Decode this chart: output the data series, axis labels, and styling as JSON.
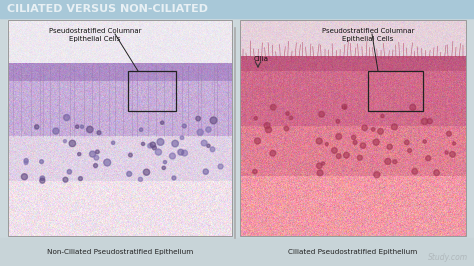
{
  "title": "CILIATED VERSUS NON-CILIATED",
  "title_color": "#e8f0f4",
  "title_bg_top": "#a8c8d8",
  "title_bg_bot": "#c0d8e4",
  "outer_bg": "#ccd8dc",
  "bottom_bar_color": "#c8d4d8",
  "left_label": "Non-Ciliated Pseudostratified Epithelium",
  "right_label": "Ciliated Pseudostratified Epithelium",
  "left_ann_text": "Pseudostratified Columnar\nEpithelial Cells",
  "right_ann_text": "Pseudostratified Columnar\nEpithelial Cells",
  "cilia_text": "Cilia",
  "watermark": "Study.com",
  "divider_color": "#aaaaaa",
  "ann_line_color": "#333333",
  "label_color": "#222222",
  "left_top_bg": "#e8e4f0",
  "left_epi_dark": "#b090c8",
  "left_epi_light": "#d4b8dc",
  "left_sub_color": "#e0d0e8",
  "left_bottom_color": "#eedde8",
  "right_top_bg": "#f0d0d8",
  "right_epi_dark": "#d06080",
  "right_epi_light": "#e8a0b0",
  "right_sub_color": "#f0b8c0",
  "right_bottom_color": "#f8d8d8"
}
